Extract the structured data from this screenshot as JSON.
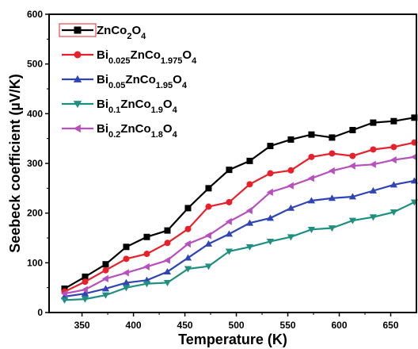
{
  "chart_data": {
    "type": "line",
    "xlabel": "Temperature (K)",
    "ylabel": "Seebeck coefficient (µV/K)",
    "xlim": [
      318,
      675
    ],
    "ylim": [
      0,
      600
    ],
    "xticks": [
      350,
      400,
      450,
      500,
      550,
      600,
      650
    ],
    "yticks": [
      0,
      100,
      200,
      300,
      400,
      500,
      600
    ],
    "legend_position": "top-left",
    "x": [
      333,
      353,
      373,
      393,
      413,
      433,
      453,
      473,
      493,
      513,
      533,
      553,
      573,
      593,
      613,
      633,
      653,
      673
    ],
    "series": [
      {
        "name": "ZnCo2O4",
        "legend_parts": [
          {
            "text": "ZnCo",
            "sub": false
          },
          {
            "text": "2",
            "sub": true
          },
          {
            "text": "O",
            "sub": false
          },
          {
            "text": "4",
            "sub": true
          }
        ],
        "color": "#000000",
        "marker": "square",
        "values": [
          48,
          72,
          97,
          132,
          152,
          165,
          210,
          250,
          287,
          305,
          335,
          348,
          358,
          352,
          367,
          382,
          385,
          392
        ]
      },
      {
        "name": "Bi0.025ZnCo1.975O4",
        "legend_parts": [
          {
            "text": "Bi",
            "sub": false
          },
          {
            "text": "0.025",
            "sub": true
          },
          {
            "text": "ZnCo",
            "sub": false
          },
          {
            "text": "1.975",
            "sub": true
          },
          {
            "text": "O",
            "sub": false
          },
          {
            "text": "4",
            "sub": true
          }
        ],
        "color": "#e8202a",
        "marker": "circle",
        "values": [
          42,
          62,
          85,
          108,
          118,
          140,
          168,
          213,
          222,
          258,
          280,
          286,
          313,
          320,
          315,
          328,
          333,
          342
        ]
      },
      {
        "name": "Bi0.05ZnCo1.95O4",
        "legend_parts": [
          {
            "text": "Bi",
            "sub": false
          },
          {
            "text": "0.05",
            "sub": true
          },
          {
            "text": "ZnCo",
            "sub": false
          },
          {
            "text": "1.95",
            "sub": true
          },
          {
            "text": "O",
            "sub": false
          },
          {
            "text": "4",
            "sub": true
          }
        ],
        "color": "#2f45b5",
        "marker": "triangle-up",
        "values": [
          32,
          38,
          48,
          60,
          65,
          82,
          110,
          138,
          158,
          180,
          190,
          210,
          225,
          230,
          233,
          245,
          257,
          265
        ]
      },
      {
        "name": "Bi0.1ZnCo1.9O4",
        "legend_parts": [
          {
            "text": "Bi",
            "sub": false
          },
          {
            "text": "0.1",
            "sub": true
          },
          {
            "text": "ZnCo",
            "sub": false
          },
          {
            "text": "1.9",
            "sub": true
          },
          {
            "text": "O",
            "sub": false
          },
          {
            "text": "4",
            "sub": true
          }
        ],
        "color": "#1f8f80",
        "marker": "triangle-down",
        "values": [
          25,
          27,
          35,
          50,
          58,
          60,
          88,
          93,
          123,
          132,
          143,
          152,
          167,
          170,
          185,
          192,
          202,
          222
        ]
      },
      {
        "name": "Bi0.2ZnCo1.8O4",
        "legend_parts": [
          {
            "text": "Bi",
            "sub": false
          },
          {
            "text": "0.2",
            "sub": true
          },
          {
            "text": "ZnCo",
            "sub": false
          },
          {
            "text": "1.8",
            "sub": true
          },
          {
            "text": "O",
            "sub": false
          },
          {
            "text": "4",
            "sub": true
          }
        ],
        "color": "#b84fbf",
        "marker": "triangle-left",
        "values": [
          38,
          46,
          68,
          80,
          92,
          105,
          138,
          155,
          183,
          205,
          242,
          255,
          270,
          285,
          295,
          298,
          307,
          313
        ]
      }
    ]
  }
}
